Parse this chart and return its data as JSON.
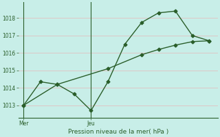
{
  "line1_x": [
    0,
    1,
    2,
    3,
    4,
    5,
    6,
    7,
    8,
    9,
    10,
    11
  ],
  "line1_y": [
    1013.0,
    1014.35,
    1014.2,
    1013.65,
    1012.7,
    1014.35,
    1016.5,
    1017.75,
    1018.3,
    1018.4,
    1017.0,
    1016.7
  ],
  "line2_x": [
    0,
    2,
    5,
    7,
    8,
    9,
    10,
    11
  ],
  "line2_y": [
    1013.0,
    1014.2,
    1015.1,
    1015.9,
    1016.2,
    1016.45,
    1016.65,
    1016.7
  ],
  "color": "#2a5e2a",
  "bg_color": "#c8eee8",
  "grid_color_major": "#e8c8c8",
  "grid_color_minor": "#ffffff",
  "xlabel": "Pression niveau de la mer( hPa )",
  "yticks": [
    1013,
    1014,
    1015,
    1016,
    1017,
    1018
  ],
  "ylim": [
    1012.3,
    1018.9
  ],
  "xlim": [
    -0.3,
    11.5
  ],
  "xtick_positions": [
    0,
    4
  ],
  "xtick_labels": [
    "Mer",
    "Jeu"
  ],
  "vline_positions": [
    0,
    4
  ],
  "marker": "D",
  "markersize": 2.5,
  "linewidth": 1.0
}
